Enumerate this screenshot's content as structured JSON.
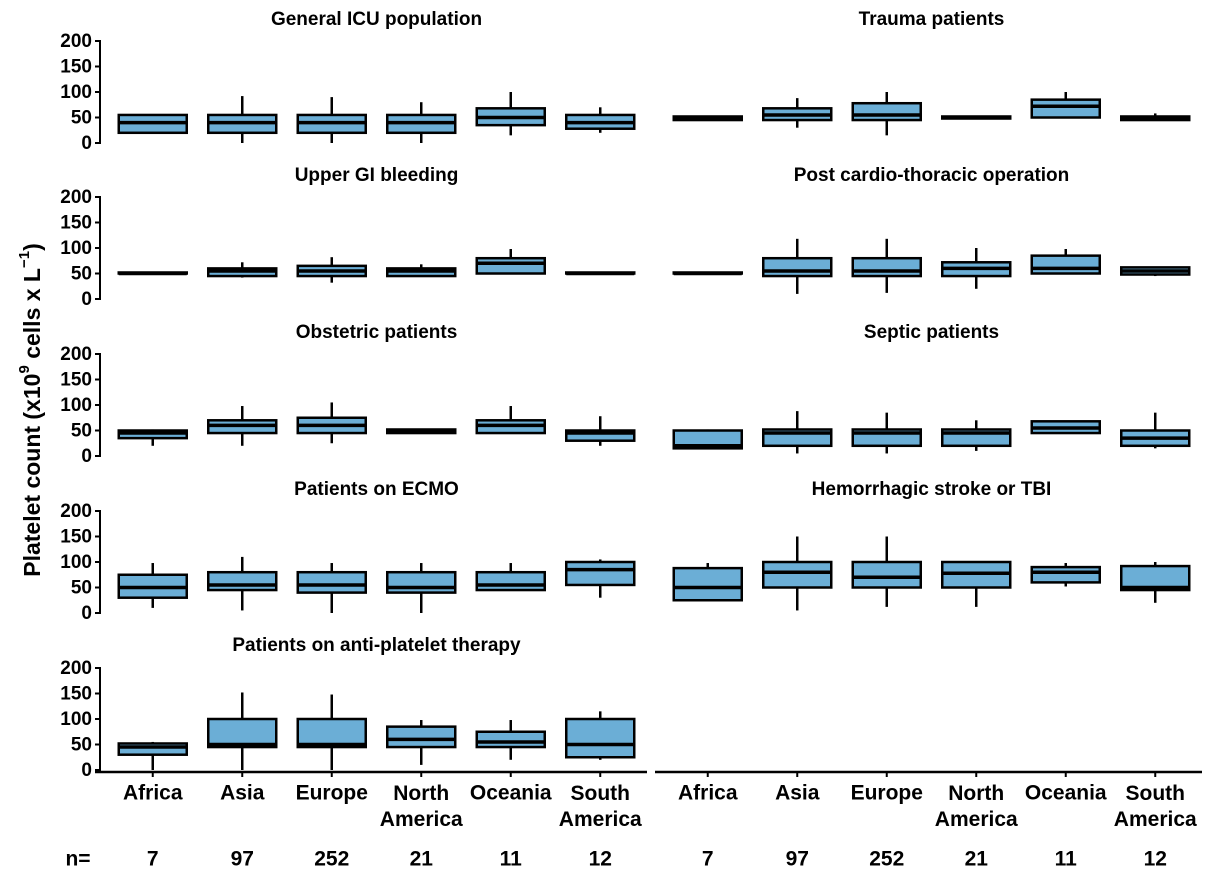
{
  "chart_data": {
    "type": "box",
    "y_label_parts": [
      "Platelet count (x10",
      "9",
      " cells x L",
      "−1",
      ")"
    ],
    "categories": [
      "Africa",
      "Asia",
      "Europe",
      "North America",
      "Oceania",
      "South America"
    ],
    "n_label": "n=",
    "n": [
      7,
      97,
      252,
      21,
      11,
      12
    ],
    "color": "#6baed6",
    "ylim": [
      0,
      200
    ],
    "yticks": [
      0,
      50,
      100,
      150,
      200
    ],
    "panels": [
      {
        "title": "General ICU population",
        "boxes": [
          {
            "min": 20,
            "q1": 20,
            "median": 40,
            "q3": 55,
            "max": 55
          },
          {
            "min": 0,
            "q1": 20,
            "median": 40,
            "q3": 55,
            "max": 92
          },
          {
            "min": 0,
            "q1": 20,
            "median": 40,
            "q3": 55,
            "max": 90
          },
          {
            "min": 0,
            "q1": 20,
            "median": 40,
            "q3": 55,
            "max": 80
          },
          {
            "min": 15,
            "q1": 35,
            "median": 50,
            "q3": 68,
            "max": 100
          },
          {
            "min": 20,
            "q1": 28,
            "median": 40,
            "q3": 55,
            "max": 70
          }
        ]
      },
      {
        "title": "Trauma patients",
        "boxes": [
          {
            "min": 45,
            "q1": 45,
            "median": 50,
            "q3": 52,
            "max": 52
          },
          {
            "min": 30,
            "q1": 45,
            "median": 55,
            "q3": 68,
            "max": 88
          },
          {
            "min": 15,
            "q1": 45,
            "median": 55,
            "q3": 78,
            "max": 100
          },
          {
            "min": 48,
            "q1": 48,
            "median": 50,
            "q3": 52,
            "max": 52
          },
          {
            "min": 50,
            "q1": 50,
            "median": 72,
            "q3": 85,
            "max": 100
          },
          {
            "min": 45,
            "q1": 45,
            "median": 50,
            "q3": 52,
            "max": 58
          }
        ]
      },
      {
        "title": "Upper GI bleeding",
        "boxes": [
          {
            "min": 50,
            "q1": 50,
            "median": 50,
            "q3": 52,
            "max": 52
          },
          {
            "min": 42,
            "q1": 45,
            "median": 55,
            "q3": 60,
            "max": 72
          },
          {
            "min": 32,
            "q1": 45,
            "median": 55,
            "q3": 65,
            "max": 82
          },
          {
            "min": 45,
            "q1": 45,
            "median": 55,
            "q3": 60,
            "max": 68
          },
          {
            "min": 50,
            "q1": 50,
            "median": 70,
            "q3": 80,
            "max": 98
          },
          {
            "min": 50,
            "q1": 50,
            "median": 50,
            "q3": 52,
            "max": 52
          }
        ]
      },
      {
        "title": "Post cardio-thoracic operation",
        "boxes": [
          {
            "min": 50,
            "q1": 50,
            "median": 50,
            "q3": 52,
            "max": 52
          },
          {
            "min": 10,
            "q1": 45,
            "median": 55,
            "q3": 80,
            "max": 118
          },
          {
            "min": 12,
            "q1": 45,
            "median": 55,
            "q3": 80,
            "max": 118
          },
          {
            "min": 20,
            "q1": 45,
            "median": 60,
            "q3": 72,
            "max": 100
          },
          {
            "min": 50,
            "q1": 50,
            "median": 60,
            "q3": 85,
            "max": 98
          },
          {
            "min": 45,
            "q1": 48,
            "median": 55,
            "q3": 62,
            "max": 62
          }
        ]
      },
      {
        "title": "Obstetric patients",
        "boxes": [
          {
            "min": 20,
            "q1": 35,
            "median": 45,
            "q3": 50,
            "max": 52
          },
          {
            "min": 20,
            "q1": 45,
            "median": 60,
            "q3": 70,
            "max": 98
          },
          {
            "min": 25,
            "q1": 45,
            "median": 60,
            "q3": 75,
            "max": 105
          },
          {
            "min": 45,
            "q1": 45,
            "median": 48,
            "q3": 52,
            "max": 52
          },
          {
            "min": 45,
            "q1": 45,
            "median": 60,
            "q3": 70,
            "max": 98
          },
          {
            "min": 20,
            "q1": 30,
            "median": 45,
            "q3": 50,
            "max": 78
          }
        ]
      },
      {
        "title": "Septic patients",
        "boxes": [
          {
            "min": 15,
            "q1": 15,
            "median": 20,
            "q3": 50,
            "max": 52
          },
          {
            "min": 5,
            "q1": 20,
            "median": 45,
            "q3": 52,
            "max": 88
          },
          {
            "min": 5,
            "q1": 20,
            "median": 45,
            "q3": 52,
            "max": 85
          },
          {
            "min": 10,
            "q1": 20,
            "median": 45,
            "q3": 52,
            "max": 70
          },
          {
            "min": 45,
            "q1": 45,
            "median": 55,
            "q3": 68,
            "max": 68
          },
          {
            "min": 15,
            "q1": 20,
            "median": 35,
            "q3": 50,
            "max": 85
          }
        ]
      },
      {
        "title": "Patients on ECMO",
        "boxes": [
          {
            "min": 10,
            "q1": 30,
            "median": 50,
            "q3": 75,
            "max": 98
          },
          {
            "min": 5,
            "q1": 45,
            "median": 55,
            "q3": 80,
            "max": 110
          },
          {
            "min": 0,
            "q1": 40,
            "median": 55,
            "q3": 80,
            "max": 98
          },
          {
            "min": 0,
            "q1": 40,
            "median": 50,
            "q3": 80,
            "max": 98
          },
          {
            "min": 45,
            "q1": 45,
            "median": 55,
            "q3": 80,
            "max": 98
          },
          {
            "min": 30,
            "q1": 55,
            "median": 85,
            "q3": 100,
            "max": 105
          }
        ]
      },
      {
        "title": "Hemorrhagic stroke or TBI",
        "boxes": [
          {
            "min": 25,
            "q1": 25,
            "median": 50,
            "q3": 88,
            "max": 98
          },
          {
            "min": 5,
            "q1": 50,
            "median": 80,
            "q3": 100,
            "max": 150
          },
          {
            "min": 12,
            "q1": 50,
            "median": 70,
            "q3": 100,
            "max": 150
          },
          {
            "min": 12,
            "q1": 50,
            "median": 78,
            "q3": 100,
            "max": 100
          },
          {
            "min": 52,
            "q1": 60,
            "median": 80,
            "q3": 90,
            "max": 98
          },
          {
            "min": 20,
            "q1": 45,
            "median": 50,
            "q3": 92,
            "max": 100
          }
        ]
      },
      {
        "title": "Patients on anti-platelet therapy",
        "boxes": [
          {
            "min": 0,
            "q1": 30,
            "median": 45,
            "q3": 52,
            "max": 55
          },
          {
            "min": 0,
            "q1": 45,
            "median": 50,
            "q3": 100,
            "max": 152
          },
          {
            "min": 0,
            "q1": 45,
            "median": 50,
            "q3": 100,
            "max": 148
          },
          {
            "min": 10,
            "q1": 45,
            "median": 60,
            "q3": 85,
            "max": 98
          },
          {
            "min": 20,
            "q1": 45,
            "median": 55,
            "q3": 75,
            "max": 98
          },
          {
            "min": 20,
            "q1": 25,
            "median": 50,
            "q3": 100,
            "max": 115
          }
        ]
      }
    ]
  }
}
